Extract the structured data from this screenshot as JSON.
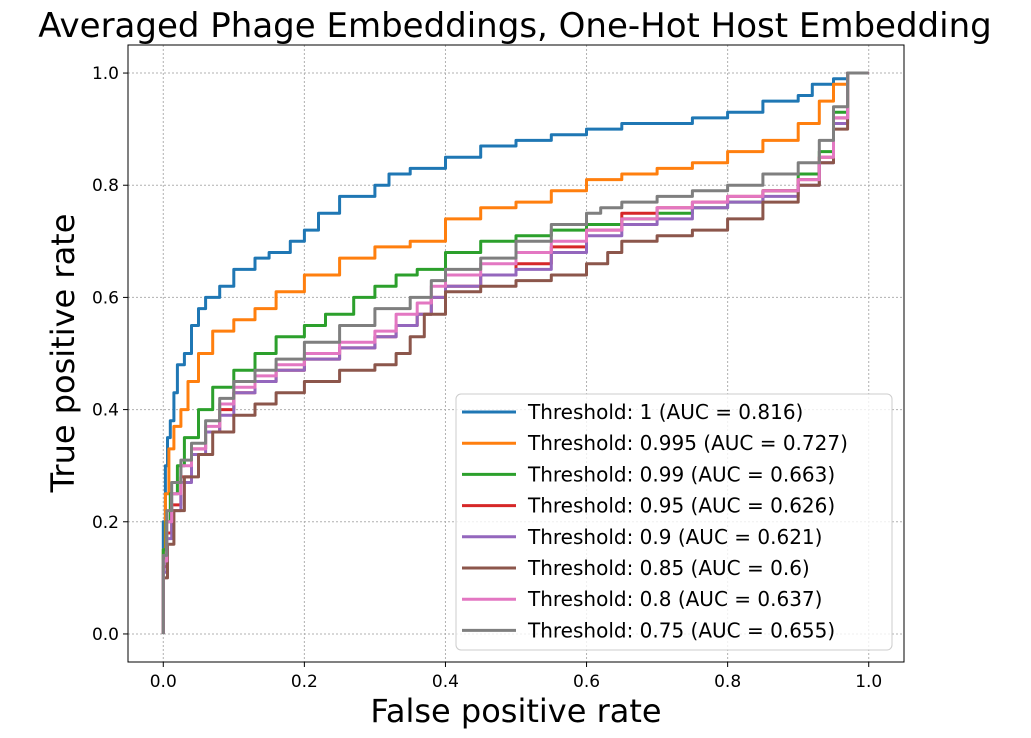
{
  "chart_data": {
    "type": "line",
    "title": "Averaged Phage Embeddings, One-Hot Host Embedding",
    "xlabel": "False positive rate",
    "ylabel": "True positive rate",
    "xlim": [
      -0.05,
      1.05
    ],
    "ylim": [
      -0.05,
      1.05
    ],
    "xticks": [
      0.0,
      0.2,
      0.4,
      0.6,
      0.8,
      1.0
    ],
    "xtick_labels": [
      "0.0",
      "0.2",
      "0.4",
      "0.6",
      "0.8",
      "1.0"
    ],
    "yticks": [
      0.0,
      0.2,
      0.4,
      0.6,
      0.8,
      1.0
    ],
    "ytick_labels": [
      "0.0",
      "0.2",
      "0.4",
      "0.6",
      "0.8",
      "1.0"
    ],
    "grid": true,
    "legend_position": "lower-right",
    "series": [
      {
        "name": "Threshold: 1 (AUC = 0.816)",
        "color": "#1f77b4",
        "x": [
          0.0,
          0.003,
          0.006,
          0.01,
          0.015,
          0.02,
          0.03,
          0.04,
          0.05,
          0.06,
          0.08,
          0.1,
          0.13,
          0.15,
          0.18,
          0.2,
          0.22,
          0.25,
          0.3,
          0.32,
          0.35,
          0.4,
          0.45,
          0.5,
          0.55,
          0.6,
          0.65,
          0.7,
          0.75,
          0.8,
          0.85,
          0.9,
          0.92,
          0.95,
          0.97,
          1.0
        ],
        "y": [
          0.0,
          0.2,
          0.3,
          0.35,
          0.38,
          0.43,
          0.48,
          0.5,
          0.55,
          0.58,
          0.6,
          0.62,
          0.65,
          0.67,
          0.68,
          0.7,
          0.72,
          0.75,
          0.78,
          0.8,
          0.82,
          0.83,
          0.85,
          0.87,
          0.88,
          0.89,
          0.9,
          0.91,
          0.91,
          0.92,
          0.93,
          0.95,
          0.96,
          0.98,
          0.99,
          1.0
        ]
      },
      {
        "name": "Threshold: 0.995 (AUC = 0.727)",
        "color": "#ff7f0e",
        "x": [
          0.0,
          0.003,
          0.008,
          0.015,
          0.025,
          0.035,
          0.05,
          0.07,
          0.1,
          0.13,
          0.16,
          0.2,
          0.25,
          0.3,
          0.35,
          0.4,
          0.45,
          0.5,
          0.55,
          0.6,
          0.65,
          0.7,
          0.75,
          0.8,
          0.85,
          0.9,
          0.93,
          0.95,
          0.97,
          1.0
        ],
        "y": [
          0.0,
          0.15,
          0.25,
          0.33,
          0.37,
          0.4,
          0.45,
          0.5,
          0.54,
          0.56,
          0.58,
          0.61,
          0.64,
          0.67,
          0.69,
          0.7,
          0.74,
          0.76,
          0.77,
          0.79,
          0.81,
          0.82,
          0.83,
          0.84,
          0.86,
          0.88,
          0.91,
          0.95,
          0.98,
          1.0
        ]
      },
      {
        "name": "Threshold: 0.99 (AUC = 0.663)",
        "color": "#2ca02c",
        "x": [
          0.0,
          0.004,
          0.01,
          0.02,
          0.03,
          0.05,
          0.07,
          0.1,
          0.13,
          0.16,
          0.2,
          0.23,
          0.27,
          0.3,
          0.33,
          0.36,
          0.4,
          0.45,
          0.5,
          0.55,
          0.6,
          0.65,
          0.7,
          0.75,
          0.8,
          0.85,
          0.9,
          0.93,
          0.95,
          0.97,
          1.0
        ],
        "y": [
          0.0,
          0.15,
          0.2,
          0.25,
          0.3,
          0.35,
          0.4,
          0.44,
          0.47,
          0.5,
          0.53,
          0.55,
          0.57,
          0.6,
          0.62,
          0.64,
          0.65,
          0.68,
          0.7,
          0.71,
          0.72,
          0.73,
          0.74,
          0.75,
          0.76,
          0.77,
          0.79,
          0.82,
          0.86,
          0.93,
          1.0
        ]
      },
      {
        "name": "Threshold: 0.95 (AUC = 0.626)",
        "color": "#d62728",
        "x": [
          0.0,
          0.005,
          0.012,
          0.025,
          0.04,
          0.06,
          0.08,
          0.1,
          0.13,
          0.16,
          0.2,
          0.25,
          0.3,
          0.33,
          0.36,
          0.38,
          0.4,
          0.45,
          0.5,
          0.55,
          0.6,
          0.65,
          0.7,
          0.75,
          0.8,
          0.85,
          0.9,
          0.93,
          0.95,
          0.97,
          1.0
        ],
        "y": [
          0.0,
          0.12,
          0.18,
          0.23,
          0.28,
          0.33,
          0.36,
          0.4,
          0.43,
          0.45,
          0.47,
          0.49,
          0.51,
          0.53,
          0.55,
          0.57,
          0.6,
          0.62,
          0.64,
          0.66,
          0.69,
          0.72,
          0.75,
          0.76,
          0.77,
          0.78,
          0.79,
          0.81,
          0.85,
          0.92,
          1.0
        ]
      },
      {
        "name": "Threshold: 0.9 (AUC = 0.621)",
        "color": "#9467bd",
        "x": [
          0.0,
          0.005,
          0.012,
          0.025,
          0.04,
          0.06,
          0.08,
          0.1,
          0.13,
          0.16,
          0.2,
          0.25,
          0.3,
          0.33,
          0.36,
          0.38,
          0.4,
          0.45,
          0.5,
          0.55,
          0.6,
          0.65,
          0.7,
          0.75,
          0.8,
          0.85,
          0.9,
          0.93,
          0.95,
          0.97,
          1.0
        ],
        "y": [
          0.0,
          0.11,
          0.17,
          0.22,
          0.27,
          0.32,
          0.36,
          0.39,
          0.43,
          0.45,
          0.47,
          0.49,
          0.51,
          0.53,
          0.55,
          0.57,
          0.6,
          0.62,
          0.64,
          0.65,
          0.68,
          0.71,
          0.73,
          0.74,
          0.76,
          0.77,
          0.78,
          0.8,
          0.84,
          0.91,
          1.0
        ]
      },
      {
        "name": "Threshold: 0.85 (AUC = 0.6)",
        "color": "#8c564b",
        "x": [
          0.0,
          0.006,
          0.015,
          0.03,
          0.05,
          0.07,
          0.1,
          0.13,
          0.16,
          0.2,
          0.25,
          0.3,
          0.33,
          0.35,
          0.37,
          0.4,
          0.45,
          0.5,
          0.55,
          0.6,
          0.63,
          0.65,
          0.7,
          0.75,
          0.8,
          0.85,
          0.9,
          0.93,
          0.95,
          0.97,
          1.0
        ],
        "y": [
          0.0,
          0.1,
          0.16,
          0.22,
          0.28,
          0.32,
          0.36,
          0.39,
          0.41,
          0.43,
          0.45,
          0.47,
          0.48,
          0.5,
          0.53,
          0.57,
          0.61,
          0.62,
          0.63,
          0.64,
          0.66,
          0.68,
          0.7,
          0.71,
          0.72,
          0.74,
          0.77,
          0.8,
          0.84,
          0.9,
          1.0
        ]
      },
      {
        "name": "Threshold: 0.8 (AUC = 0.637)",
        "color": "#e377c2",
        "x": [
          0.0,
          0.005,
          0.012,
          0.025,
          0.04,
          0.06,
          0.08,
          0.1,
          0.13,
          0.16,
          0.2,
          0.25,
          0.3,
          0.33,
          0.36,
          0.38,
          0.4,
          0.45,
          0.5,
          0.55,
          0.6,
          0.65,
          0.7,
          0.75,
          0.8,
          0.85,
          0.9,
          0.93,
          0.95,
          0.97,
          1.0
        ],
        "y": [
          0.0,
          0.13,
          0.2,
          0.25,
          0.3,
          0.33,
          0.37,
          0.41,
          0.44,
          0.46,
          0.48,
          0.5,
          0.52,
          0.54,
          0.57,
          0.59,
          0.62,
          0.64,
          0.66,
          0.68,
          0.7,
          0.72,
          0.74,
          0.76,
          0.77,
          0.78,
          0.79,
          0.81,
          0.85,
          0.92,
          1.0
        ]
      },
      {
        "name": "Threshold: 0.75 (AUC = 0.655)",
        "color": "#7f7f7f",
        "x": [
          0.0,
          0.005,
          0.012,
          0.025,
          0.04,
          0.06,
          0.08,
          0.1,
          0.13,
          0.16,
          0.2,
          0.25,
          0.3,
          0.35,
          0.38,
          0.4,
          0.45,
          0.5,
          0.55,
          0.6,
          0.62,
          0.65,
          0.7,
          0.75,
          0.8,
          0.85,
          0.9,
          0.93,
          0.95,
          0.97,
          1.0
        ],
        "y": [
          0.0,
          0.14,
          0.22,
          0.27,
          0.31,
          0.34,
          0.38,
          0.42,
          0.45,
          0.47,
          0.49,
          0.52,
          0.55,
          0.58,
          0.6,
          0.63,
          0.65,
          0.67,
          0.7,
          0.73,
          0.75,
          0.76,
          0.77,
          0.78,
          0.79,
          0.8,
          0.82,
          0.84,
          0.88,
          0.94,
          1.0
        ]
      }
    ]
  }
}
